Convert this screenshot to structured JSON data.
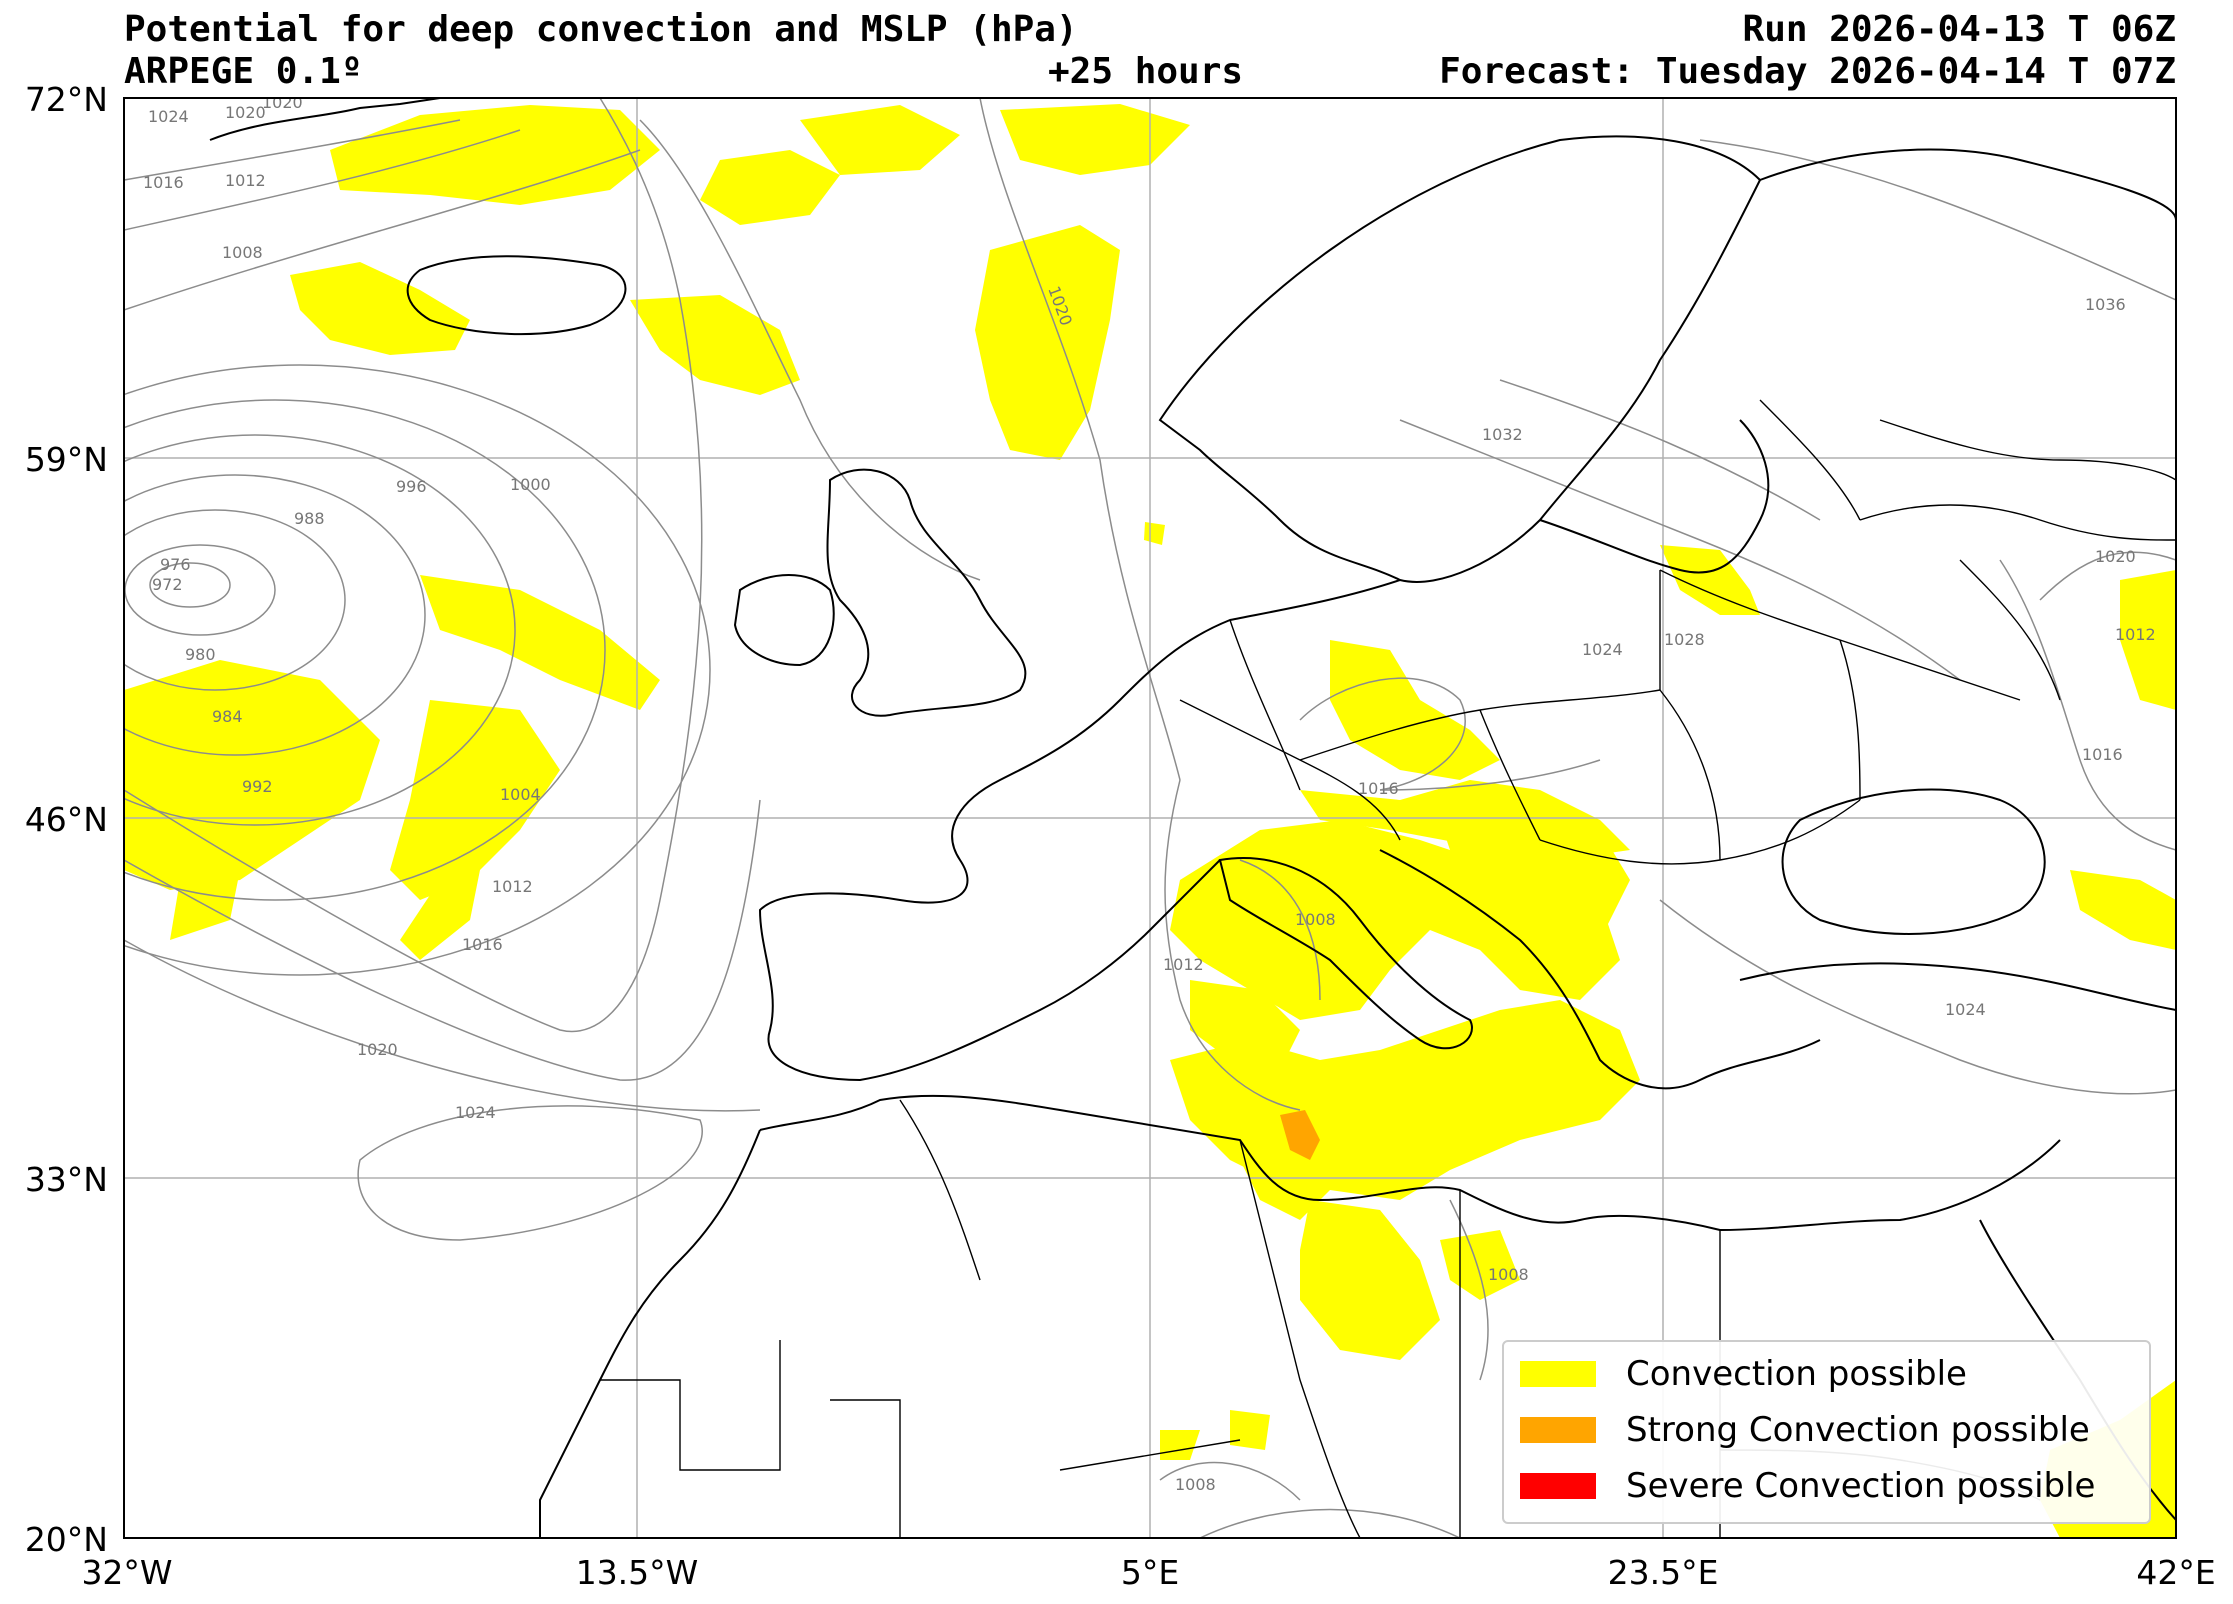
{
  "header": {
    "title_line1": "Potential for deep convection and MSLP (hPa)",
    "title_line2": "ARPEGE 0.1º",
    "lead_time": "+25 hours",
    "run": "Run 2026-04-13 T 06Z",
    "forecast": "Forecast: Tuesday 2026-04-14 T 07Z"
  },
  "axes": {
    "lat_labels": [
      "72°N",
      "59°N",
      "46°N",
      "33°N",
      "20°N"
    ],
    "lon_labels": [
      "32°W",
      "13.5°W",
      "5°E",
      "23.5°E",
      "42°E"
    ]
  },
  "isobar_labels": {
    "l1024a": "1024",
    "l1020a": "1020",
    "l1020b": "1020",
    "l1016a": "1016",
    "l1012a": "1012",
    "l1008a": "1008",
    "l1020c": "1020",
    "l1036": "1036",
    "l1032": "1032",
    "l996": "996",
    "l1000": "1000",
    "l988": "988",
    "l976": "976",
    "l972": "972",
    "l980": "980",
    "l984": "984",
    "l992": "992",
    "l1004": "1004",
    "l1012b": "1012",
    "l1016b": "1016",
    "l1020d": "1020",
    "l1024b": "1024",
    "l1024c": "1024",
    "l1028": "1028",
    "l1020e": "1020",
    "l1012c": "1012",
    "l1016c": "1016",
    "l1016d": "1016",
    "l1008b": "1008",
    "l1012d": "1012",
    "l1024d": "1024",
    "l1008c": "1008",
    "l1008d": "1008"
  },
  "legend": {
    "items": [
      {
        "label": "Convection possible",
        "color": "#ffff00"
      },
      {
        "label": "Strong Convection possible",
        "color": "#ffa500"
      },
      {
        "label": "Severe Convection possible",
        "color": "#ff0000"
      }
    ]
  },
  "colors": {
    "convection": "#ffff00",
    "strong": "#ffa500",
    "severe": "#ff0000",
    "isobar": "#8c8c8c",
    "coast": "#000000",
    "grid": "#b0b0b0"
  }
}
